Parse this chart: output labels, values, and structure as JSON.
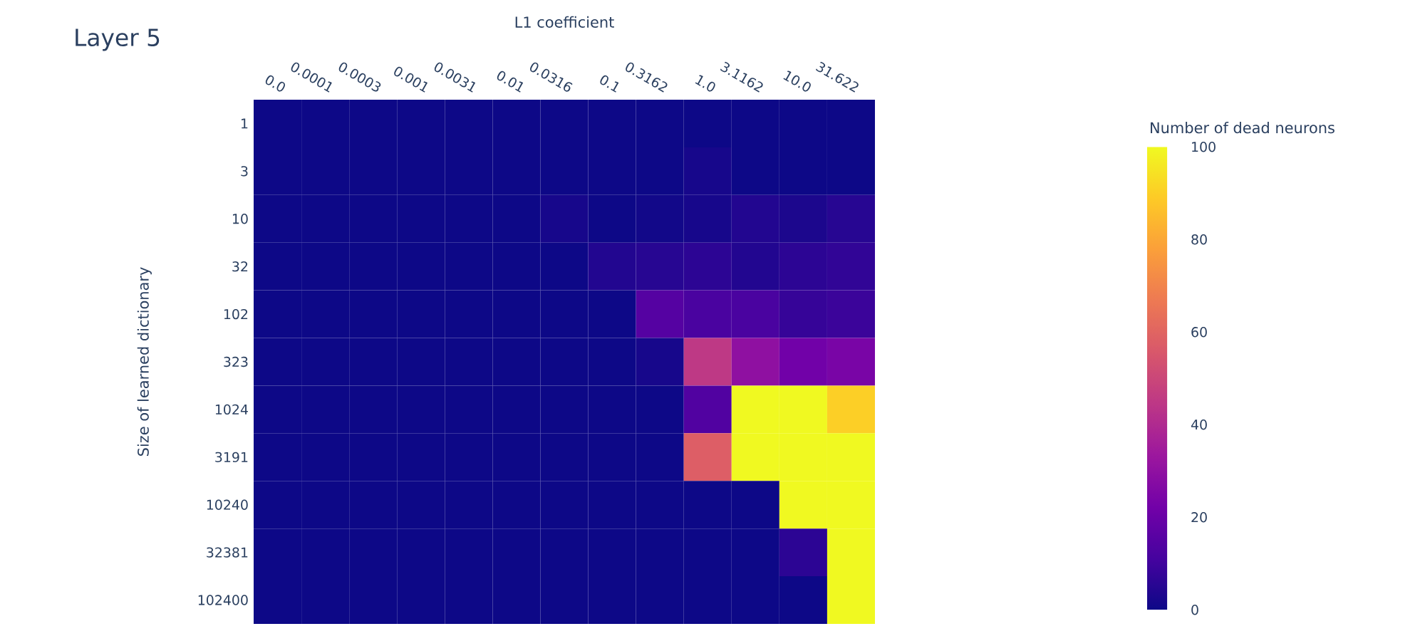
{
  "chart_data": {
    "type": "heatmap",
    "title": "Layer 5",
    "xlabel": "L1 coefficient",
    "ylabel": "Size of learned dictionary",
    "clabel": "Number of dead neurons",
    "categories": [
      "0.0",
      "0.0001",
      "0.0003",
      "0.001",
      "0.0031",
      "0.01",
      "0.0316",
      "0.1",
      "0.3162",
      "1.0",
      "3.1162",
      "10.0",
      "31.622"
    ],
    "y_categories": [
      "1",
      "3",
      "10",
      "32",
      "102",
      "323",
      "1024",
      "3191",
      "10240",
      "32381",
      "102400"
    ],
    "cells": [
      [
        0,
        0,
        0,
        0,
        0,
        0,
        0,
        0,
        0,
        0,
        0,
        0,
        0
      ],
      [
        0,
        0,
        0,
        0,
        0,
        0,
        0,
        0,
        0,
        2,
        0,
        0,
        0
      ],
      [
        0,
        0,
        0,
        0,
        0,
        0,
        2,
        0,
        1,
        2,
        4,
        3,
        5
      ],
      [
        0,
        0,
        0,
        0,
        0,
        0,
        0,
        4,
        5,
        6,
        4,
        6,
        7
      ],
      [
        0,
        0,
        0,
        0,
        0,
        0,
        0,
        0,
        15,
        12,
        12,
        8,
        9
      ],
      [
        0,
        0,
        0,
        0,
        0,
        0,
        0,
        0,
        2,
        45,
        30,
        22,
        24
      ],
      [
        0,
        0,
        0,
        0,
        0,
        0,
        0,
        0,
        0,
        14,
        100,
        100,
        90
      ],
      [
        0,
        0,
        0,
        0,
        0,
        0,
        0,
        0,
        0,
        58,
        100,
        100,
        100
      ],
      [
        0,
        0,
        0,
        0,
        0,
        0,
        0,
        0,
        0,
        0,
        0,
        100,
        100
      ],
      [
        0,
        0,
        0,
        0,
        0,
        0,
        0,
        0,
        0,
        0,
        0,
        6,
        100
      ],
      [
        0,
        0,
        0,
        0,
        0,
        0,
        0,
        0,
        0,
        0,
        0,
        0,
        100
      ]
    ],
    "clim": [
      0,
      100
    ],
    "cticks": [
      0,
      20,
      40,
      60,
      80,
      100
    ]
  }
}
